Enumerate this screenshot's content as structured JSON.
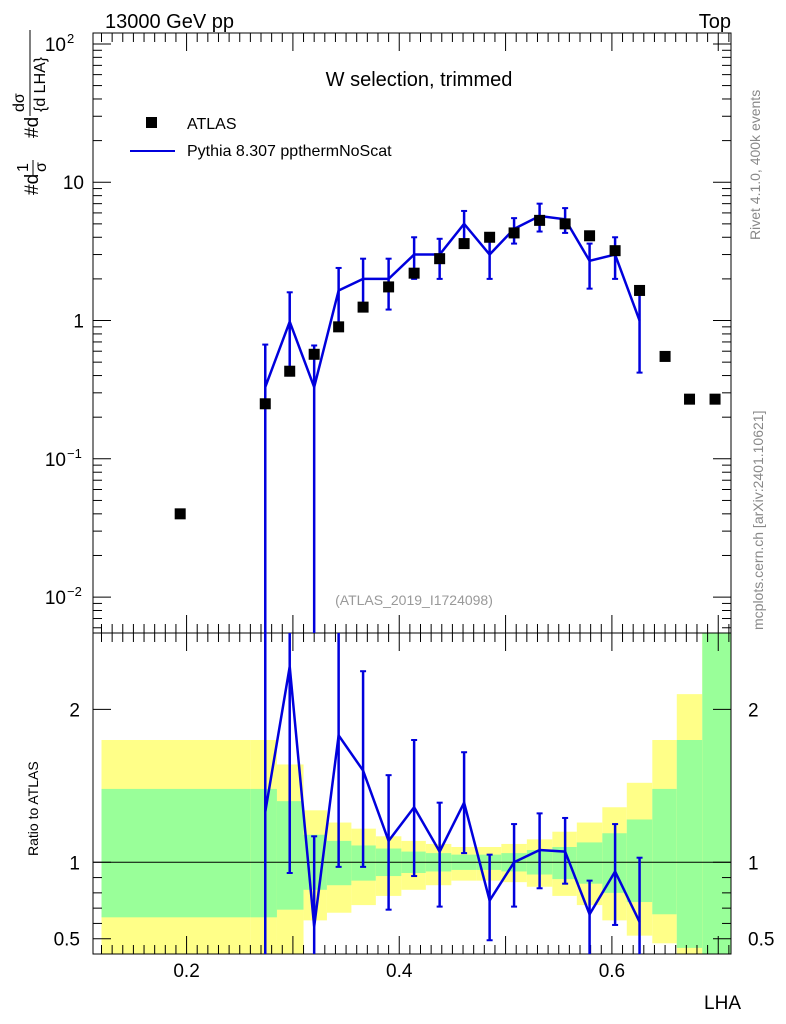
{
  "header": {
    "energy_label": "13000 GeV pp",
    "category_label": "Top"
  },
  "side_labels": {
    "rivet": "Rivet 4.1.0,  400k events",
    "source": "mcplots.cern.ch [arXiv:2401.10621]"
  },
  "chart_data": [
    {
      "type": "scatter",
      "panel": "main",
      "title": "W selection, trimmed",
      "watermark": "(ATLAS_2019_I1724098)",
      "ylabel": "#d(1/σ) #dσ/{d LHA}",
      "yscale": "log",
      "ylim": [
        0.0055,
        120
      ],
      "xlim": [
        0.112,
        0.712
      ],
      "y_ticks": [
        "10^-2",
        "10^-1",
        "1",
        "10",
        "10^2"
      ],
      "legend": {
        "position": "top-left",
        "entries": [
          {
            "name": "ATLAS",
            "marker": "square",
            "color": "#000000"
          },
          {
            "name": "Pythia 8.307 ppthermNoScat",
            "marker": "line",
            "color": "#0000dd"
          }
        ]
      },
      "series": [
        {
          "name": "ATLAS",
          "x": [
            0.194,
            0.274,
            0.297,
            0.32,
            0.343,
            0.366,
            0.39,
            0.414,
            0.438,
            0.461,
            0.485,
            0.508,
            0.532,
            0.556,
            0.579,
            0.603,
            0.626,
            0.65,
            0.673,
            0.697
          ],
          "y": [
            0.04,
            0.25,
            0.43,
            0.57,
            0.9,
            1.25,
            1.75,
            2.2,
            2.8,
            3.6,
            4.0,
            4.3,
            5.3,
            5.0,
            4.1,
            3.2,
            1.65,
            0.55,
            0.27,
            0.27
          ]
        },
        {
          "name": "Pythia 8.307 ppthermNoScat",
          "x": [
            0.274,
            0.297,
            0.32,
            0.343,
            0.366,
            0.39,
            0.414,
            0.438,
            0.461,
            0.485,
            0.508,
            0.532,
            0.556,
            0.579,
            0.603,
            0.626
          ],
          "y": [
            0.33,
            0.98,
            0.33,
            1.65,
            2.0,
            2.0,
            3.0,
            3.0,
            5.0,
            3.0,
            4.6,
            5.7,
            5.4,
            2.7,
            3.0,
            1.0
          ],
          "err_up": [
            0.67,
            1.6,
            0.66,
            2.4,
            2.8,
            2.8,
            4.0,
            3.9,
            6.2,
            4.2,
            5.5,
            7.0,
            6.5,
            3.6,
            4.0,
            1.7
          ],
          "err_down": [
            0.0001,
            0.4,
            0.0001,
            0.88,
            1.2,
            1.2,
            2.0,
            2.0,
            3.8,
            2.0,
            3.6,
            4.4,
            4.3,
            1.7,
            2.0,
            0.42
          ]
        }
      ]
    },
    {
      "type": "line",
      "panel": "ratio",
      "ylabel": "Ratio to ATLAS",
      "xlabel": "LHA",
      "ylim": [
        0.4,
        2.5
      ],
      "xlim": [
        0.112,
        0.712
      ],
      "y_ticks": [
        0.5,
        1,
        2
      ],
      "x_ticks": [
        0.2,
        0.4,
        0.6
      ],
      "bands": {
        "edges": [
          0.12,
          0.26,
          0.285,
          0.31,
          0.332,
          0.355,
          0.378,
          0.402,
          0.425,
          0.449,
          0.473,
          0.496,
          0.52,
          0.544,
          0.567,
          0.591,
          0.614,
          0.638,
          0.661,
          0.685,
          0.712
        ],
        "yellow_low": [
          0.33,
          0.33,
          0.36,
          0.62,
          0.67,
          0.72,
          0.78,
          0.82,
          0.85,
          0.88,
          0.88,
          0.87,
          0.84,
          0.78,
          0.72,
          0.62,
          0.52,
          0.47,
          0.4,
          0.4
        ],
        "yellow_high": [
          1.8,
          1.8,
          1.64,
          1.34,
          1.26,
          1.22,
          1.17,
          1.14,
          1.12,
          1.1,
          1.1,
          1.12,
          1.15,
          1.2,
          1.26,
          1.36,
          1.52,
          1.8,
          2.1,
          2.5
        ],
        "green_low": [
          0.64,
          0.64,
          0.69,
          0.82,
          0.85,
          0.88,
          0.91,
          0.93,
          0.94,
          0.95,
          0.95,
          0.94,
          0.92,
          0.89,
          0.86,
          0.8,
          0.74,
          0.66,
          0.44,
          0.4
        ],
        "green_high": [
          1.48,
          1.48,
          1.4,
          1.18,
          1.14,
          1.11,
          1.09,
          1.07,
          1.06,
          1.05,
          1.05,
          1.06,
          1.08,
          1.1,
          1.13,
          1.19,
          1.28,
          1.48,
          1.8,
          2.5
        ]
      },
      "series": [
        {
          "name": "Pythia 8.307 ppthermNoScat / ATLAS",
          "x": [
            0.274,
            0.297,
            0.32,
            0.343,
            0.366,
            0.39,
            0.414,
            0.438,
            0.461,
            0.485,
            0.508,
            0.532,
            0.556,
            0.579,
            0.603,
            0.626
          ],
          "y": [
            1.33,
            2.28,
            0.58,
            1.83,
            1.6,
            1.14,
            1.36,
            1.07,
            1.39,
            0.75,
            1.0,
            1.08,
            1.07,
            0.66,
            0.94,
            0.61
          ],
          "err_up": [
            2.7,
            2.5,
            1.17,
            2.5,
            2.25,
            1.57,
            1.8,
            1.39,
            1.72,
            1.05,
            1.25,
            1.32,
            1.29,
            0.88,
            1.25,
            1.03
          ],
          "err_down": [
            0.3,
            0.93,
            0.3,
            0.97,
            0.97,
            0.69,
            0.91,
            0.71,
            1.06,
            0.49,
            0.71,
            0.83,
            0.86,
            0.38,
            0.59,
            0.3
          ]
        }
      ]
    }
  ]
}
